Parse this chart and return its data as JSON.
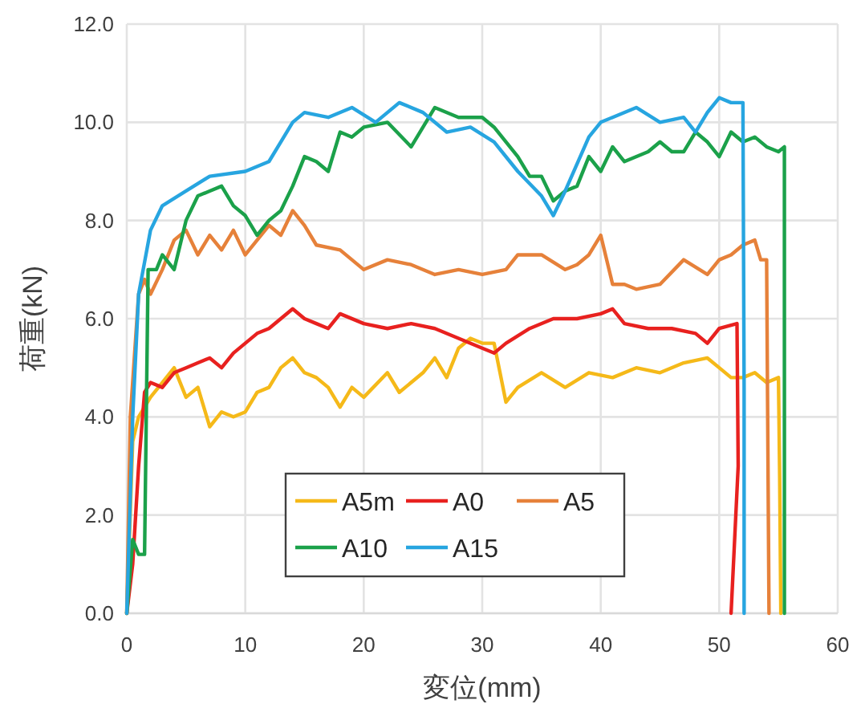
{
  "chart_data": {
    "type": "line",
    "xlabel": "変位(mm)",
    "ylabel": "荷重(kN)",
    "xlim": [
      0,
      60
    ],
    "xticks": [
      0,
      10,
      20,
      30,
      40,
      50,
      60
    ],
    "ylim": [
      0,
      12
    ],
    "yticks": [
      {
        "value": 0,
        "label": "0.0"
      },
      {
        "value": 2,
        "label": "2.0"
      },
      {
        "value": 4,
        "label": "4.0"
      },
      {
        "value": 6,
        "label": "6.0"
      },
      {
        "value": 8,
        "label": "8.0"
      },
      {
        "value": 10,
        "label": "10.0"
      },
      {
        "value": 12,
        "label": "12.0"
      }
    ],
    "grid": true,
    "legend": "bottom",
    "marker": "none",
    "line_style": "solid",
    "series": [
      {
        "name": "A5m",
        "color": "#f5b919",
        "x": [
          0,
          0.5,
          1,
          2,
          3,
          4,
          5,
          6,
          7,
          8,
          9,
          10,
          11,
          12,
          13,
          14,
          15,
          16,
          17,
          18,
          19,
          20,
          22,
          23,
          24,
          25,
          26,
          27,
          28,
          29,
          30,
          31,
          32,
          33,
          35,
          37,
          39,
          41,
          43,
          45,
          47,
          49,
          50,
          51,
          52,
          53,
          54,
          55,
          55.1,
          55.2
        ],
        "values": [
          0,
          3.5,
          4.0,
          4.4,
          4.7,
          5.0,
          4.4,
          4.6,
          3.8,
          4.1,
          4.0,
          4.1,
          4.5,
          4.6,
          5.0,
          5.2,
          4.9,
          4.8,
          4.6,
          4.2,
          4.6,
          4.4,
          4.9,
          4.5,
          4.7,
          4.9,
          5.2,
          4.8,
          5.4,
          5.6,
          5.5,
          5.5,
          4.3,
          4.6,
          4.9,
          4.6,
          4.9,
          4.8,
          5.0,
          4.9,
          5.1,
          5.2,
          5.0,
          4.8,
          4.8,
          4.9,
          4.7,
          4.8,
          2.8,
          0
        ]
      },
      {
        "name": "A0",
        "color": "#e8211f",
        "x": [
          0,
          0.5,
          1,
          1.5,
          2,
          3,
          4,
          5,
          6,
          7,
          8,
          9,
          10,
          11,
          12,
          13,
          14,
          15,
          16,
          17,
          18,
          20,
          22,
          24,
          26,
          28,
          30,
          31,
          32,
          34,
          36,
          38,
          40,
          41,
          42,
          44,
          46,
          48,
          49,
          50,
          51.5,
          51.6,
          51
        ],
        "values": [
          0,
          1,
          3,
          4.5,
          4.7,
          4.6,
          4.9,
          5.0,
          5.1,
          5.2,
          5.0,
          5.3,
          5.5,
          5.7,
          5.8,
          6.0,
          6.2,
          6.0,
          5.9,
          5.8,
          6.1,
          5.9,
          5.8,
          5.9,
          5.8,
          5.6,
          5.4,
          5.3,
          5.5,
          5.8,
          6.0,
          6.0,
          6.1,
          6.2,
          5.9,
          5.8,
          5.8,
          5.7,
          5.5,
          5.8,
          5.9,
          3.0,
          0
        ]
      },
      {
        "name": "A5",
        "color": "#e6813a",
        "x": [
          0,
          0.3,
          1,
          1.5,
          2,
          3,
          4,
          5,
          6,
          7,
          8,
          9,
          10,
          11,
          12,
          13,
          14,
          15,
          16,
          18,
          20,
          22,
          24,
          26,
          28,
          30,
          32,
          33,
          35,
          37,
          38,
          39,
          40,
          41,
          42,
          43,
          45,
          47,
          49,
          50,
          51,
          52,
          53,
          53.5,
          54,
          54.2
        ],
        "values": [
          0,
          4,
          6.5,
          6.8,
          6.5,
          7.0,
          7.6,
          7.8,
          7.3,
          7.7,
          7.4,
          7.8,
          7.3,
          7.6,
          7.9,
          7.7,
          8.2,
          7.9,
          7.5,
          7.4,
          7.0,
          7.2,
          7.1,
          6.9,
          7.0,
          6.9,
          7.0,
          7.3,
          7.3,
          7.0,
          7.1,
          7.3,
          7.7,
          6.7,
          6.7,
          6.6,
          6.7,
          7.2,
          6.9,
          7.2,
          7.3,
          7.5,
          7.6,
          7.2,
          7.2,
          0
        ]
      },
      {
        "name": "A10",
        "color": "#1ba14a",
        "x": [
          0,
          0.5,
          1,
          1.5,
          1.8,
          2.5,
          3,
          4,
          5,
          6,
          7,
          8,
          9,
          10,
          11,
          12,
          13,
          14,
          15,
          16,
          17,
          18,
          19,
          20,
          22,
          24,
          25,
          26,
          28,
          30,
          31,
          33,
          34,
          35,
          36,
          37,
          38,
          39,
          40,
          41,
          42,
          44,
          45,
          46,
          47,
          48,
          49,
          50,
          51,
          52,
          53,
          54,
          55,
          55.5,
          55.5
        ],
        "values": [
          0,
          1.5,
          1.2,
          1.2,
          7.0,
          7.0,
          7.3,
          7.0,
          8.0,
          8.5,
          8.6,
          8.7,
          8.3,
          8.1,
          7.7,
          8.0,
          8.2,
          8.7,
          9.3,
          9.2,
          9.0,
          9.8,
          9.7,
          9.9,
          10.0,
          9.5,
          9.9,
          10.3,
          10.1,
          10.1,
          9.9,
          9.3,
          8.9,
          8.9,
          8.4,
          8.6,
          8.7,
          9.3,
          9.0,
          9.5,
          9.2,
          9.4,
          9.6,
          9.4,
          9.4,
          9.8,
          9.6,
          9.3,
          9.8,
          9.6,
          9.7,
          9.5,
          9.4,
          9.5,
          0
        ]
      },
      {
        "name": "A15",
        "color": "#27a5e0",
        "x": [
          0,
          0.5,
          1,
          2,
          3,
          5,
          7,
          10,
          12,
          13,
          14,
          15,
          17,
          19,
          21,
          23,
          25,
          27,
          29,
          31,
          33,
          35,
          36,
          37,
          39,
          40,
          41,
          43,
          45,
          47,
          48,
          49,
          50,
          51,
          52,
          52.1,
          52.1
        ],
        "values": [
          0,
          4,
          6.5,
          7.8,
          8.3,
          8.6,
          8.9,
          9.0,
          9.2,
          9.6,
          10.0,
          10.2,
          10.1,
          10.3,
          10.0,
          10.4,
          10.2,
          9.8,
          9.9,
          9.6,
          9.0,
          8.5,
          8.1,
          8.6,
          9.7,
          10.0,
          10.1,
          10.3,
          10.0,
          10.1,
          9.8,
          10.2,
          10.5,
          10.4,
          10.4,
          4.6,
          0
        ]
      }
    ]
  }
}
